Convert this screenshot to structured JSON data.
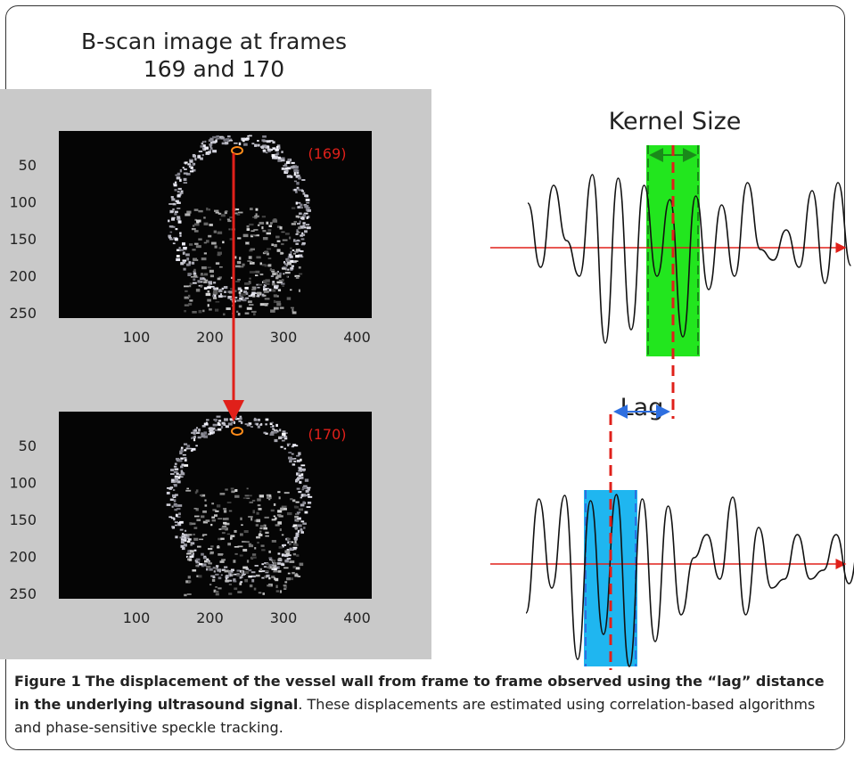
{
  "left_panel": {
    "title_lines": [
      "B-scan image at frames",
      "169 and 170"
    ],
    "frames": [
      {
        "label": "(169)",
        "yticks": [
          "50",
          "100",
          "150",
          "200",
          "250"
        ],
        "xticks": [
          "100",
          "200",
          "300",
          "400"
        ]
      },
      {
        "label": "(170)",
        "yticks": [
          "50",
          "100",
          "150",
          "200",
          "250"
        ],
        "xticks": [
          "100",
          "200",
          "300",
          "400"
        ]
      }
    ]
  },
  "right_panel": {
    "kernel_label": "Kernel Size",
    "lag_label": "Lag"
  },
  "caption": {
    "label": "Figure 1",
    "bold": "The displacement of the vessel wall from frame to frame observed using the “lag” distance in the underlying ultrasound signal",
    "text": ". These displacements are estimated using correlation-based algorithms and phase-sensitive speckle tracking."
  }
}
